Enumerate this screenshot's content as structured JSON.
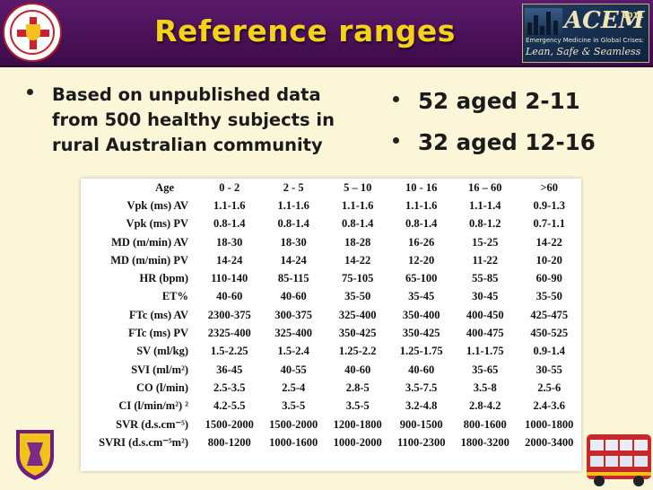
{
  "header": {
    "title": "Reference ranges"
  },
  "acem_logo": {
    "brand": "ACEM",
    "year": "2011",
    "subtitle": "Emergency Medicine in Global Crises:",
    "tagline": "Lean, Safe & Seamless"
  },
  "left_bullets": [
    "Based on unpublished data from 500 healthy subjects in rural Australian community"
  ],
  "right_bullets": [
    "52 aged 2-11",
    "32 aged 12-16"
  ],
  "table": {
    "headers": [
      "Age",
      "0 - 2",
      "2 - 5",
      "5 – 10",
      "10 - 16",
      "16 – 60",
      ">60"
    ],
    "rows": [
      [
        "Vpk (ms) AV",
        "1.1-1.6",
        "1.1-1.6",
        "1.1-1.6",
        "1.1-1.6",
        "1.1-1.4",
        "0.9-1.3"
      ],
      [
        "Vpk (ms) PV",
        "0.8-1.4",
        "0.8-1.4",
        "0.8-1.4",
        "0.8-1.4",
        "0.8-1.2",
        "0.7-1.1"
      ],
      [
        "MD (m/min) AV",
        "18-30",
        "18-30",
        "18-28",
        "16-26",
        "15-25",
        "14-22"
      ],
      [
        "MD (m/min) PV",
        "14-24",
        "14-24",
        "14-22",
        "12-20",
        "11-22",
        "10-20"
      ],
      [
        "HR (bpm)",
        "110-140",
        "85-115",
        "75-105",
        "65-100",
        "55-85",
        "60-90"
      ],
      [
        "ET%",
        "40-60",
        "40-60",
        "35-50",
        "35-45",
        "30-45",
        "35-50"
      ],
      [
        "FTc (ms) AV",
        "2300-375",
        "300-375",
        "325-400",
        "350-400",
        "400-450",
        "425-475"
      ],
      [
        "FTc (ms) PV",
        "2325-400",
        "325-400",
        "350-425",
        "350-425",
        "400-475",
        "450-525"
      ],
      [
        "SV (ml/kg)",
        "1.5-2.25",
        "1.5-2.4",
        "1.25-2.2",
        "1.25-1.75",
        "1.1-1.75",
        "0.9-1.4"
      ],
      [
        "SVI (ml/m²)",
        "36-45",
        "40-55",
        "40-60",
        "40-60",
        "35-65",
        "30-55"
      ],
      [
        "CO (l/min)",
        "2.5-3.5",
        "2.5-4",
        "2.8-5",
        "3.5-7.5",
        "3.5-8",
        "2.5-6"
      ],
      [
        "CI (l/min/m²) ²",
        "4.2-5.5",
        "3.5-5",
        "3.5-5",
        "3.2-4.8",
        "2.8-4.2",
        "2.4-3.6"
      ],
      [
        "SVR (d.s.cm⁻⁵)",
        "1500-2000",
        "1500-2000",
        "1200-1800",
        "900-1500",
        "800-1600",
        "1000-1800"
      ],
      [
        "SVRI (d.s.cm⁻⁵m²)",
        "800-1200",
        "1000-1600",
        "1000-2000",
        "1100-2300",
        "1800-3200",
        "2000-3400"
      ]
    ]
  }
}
